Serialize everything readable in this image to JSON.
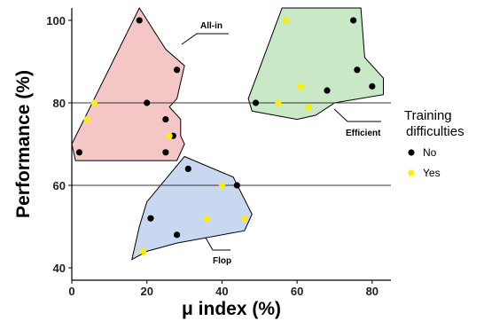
{
  "chart_data": {
    "type": "scatter",
    "title": "",
    "xlabel": "μ index (%)",
    "ylabel": "Performance (%)",
    "xlim": [
      0,
      85
    ],
    "ylim": [
      37,
      103
    ],
    "x_ticks": [
      0,
      20,
      40,
      60,
      80
    ],
    "y_ticks": [
      40,
      60,
      80,
      100
    ],
    "reference_lines": [
      60,
      80
    ],
    "legend": {
      "title_lines": [
        "Training",
        "difficulties"
      ],
      "placement": "right",
      "entries": [
        {
          "key": "no",
          "label": "No",
          "color": "#000000"
        },
        {
          "key": "yes",
          "label": "Yes",
          "color": "#ffee00"
        }
      ]
    },
    "groups": [
      {
        "label": "All-in",
        "fill": "#f4c6c6",
        "hull": [
          [
            18,
            103
          ],
          [
            25,
            93
          ],
          [
            30,
            89
          ],
          [
            28,
            81
          ],
          [
            26,
            79
          ],
          [
            29,
            76
          ],
          [
            29,
            72
          ],
          [
            30,
            70
          ],
          [
            28,
            66
          ],
          [
            1,
            66
          ],
          [
            0,
            70
          ]
        ],
        "points": [
          {
            "x": 18,
            "y": 100,
            "difficulties": "no"
          },
          {
            "x": 28,
            "y": 88,
            "difficulties": "no"
          },
          {
            "x": 20,
            "y": 80,
            "difficulties": "no"
          },
          {
            "x": 6,
            "y": 80,
            "difficulties": "yes"
          },
          {
            "x": 4,
            "y": 76,
            "difficulties": "yes"
          },
          {
            "x": 25,
            "y": 76,
            "difficulties": "no"
          },
          {
            "x": 27,
            "y": 72,
            "difficulties": "no"
          },
          {
            "x": 26,
            "y": 72,
            "difficulties": "yes"
          },
          {
            "x": 2,
            "y": 68,
            "difficulties": "no"
          },
          {
            "x": 25,
            "y": 68,
            "difficulties": "no"
          }
        ]
      },
      {
        "label": "Efficient",
        "fill": "#c8e8c6",
        "hull": [
          [
            56,
            103
          ],
          [
            77,
            103
          ],
          [
            78,
            91
          ],
          [
            83,
            86
          ],
          [
            83,
            82
          ],
          [
            70,
            80
          ],
          [
            65,
            77
          ],
          [
            60,
            76
          ],
          [
            48,
            78
          ],
          [
            47,
            81
          ]
        ],
        "points": [
          {
            "x": 57,
            "y": 100,
            "difficulties": "yes"
          },
          {
            "x": 75,
            "y": 100,
            "difficulties": "no"
          },
          {
            "x": 76,
            "y": 88,
            "difficulties": "no"
          },
          {
            "x": 80,
            "y": 84,
            "difficulties": "no"
          },
          {
            "x": 61,
            "y": 84,
            "difficulties": "yes"
          },
          {
            "x": 68,
            "y": 83,
            "difficulties": "no"
          },
          {
            "x": 49,
            "y": 80,
            "difficulties": "no"
          },
          {
            "x": 55,
            "y": 80,
            "difficulties": "yes"
          },
          {
            "x": 63,
            "y": 79,
            "difficulties": "yes"
          }
        ]
      },
      {
        "label": "Flop",
        "fill": "#c8d8f0",
        "hull": [
          [
            30,
            67
          ],
          [
            43,
            62
          ],
          [
            48,
            53
          ],
          [
            46,
            49
          ],
          [
            28,
            46
          ],
          [
            20,
            44
          ],
          [
            16,
            42
          ],
          [
            18,
            50
          ],
          [
            20,
            56
          ]
        ],
        "points": [
          {
            "x": 31,
            "y": 64,
            "difficulties": "no"
          },
          {
            "x": 44,
            "y": 60,
            "difficulties": "no"
          },
          {
            "x": 40,
            "y": 60,
            "difficulties": "yes"
          },
          {
            "x": 21,
            "y": 52,
            "difficulties": "no"
          },
          {
            "x": 36,
            "y": 52,
            "difficulties": "yes"
          },
          {
            "x": 46,
            "y": 52,
            "difficulties": "yes"
          },
          {
            "x": 28,
            "y": 48,
            "difficulties": "no"
          },
          {
            "x": 19,
            "y": 44,
            "difficulties": "yes"
          }
        ]
      }
    ]
  }
}
